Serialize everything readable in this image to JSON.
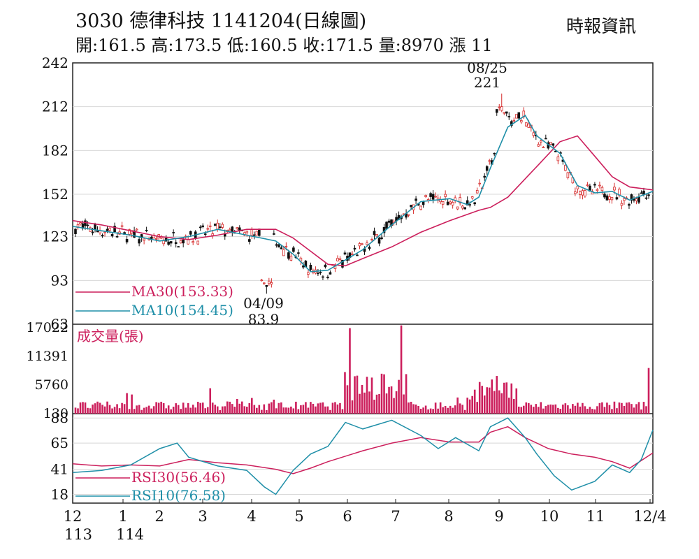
{
  "header": {
    "title": "3030  德律科技 1141204(日線圖)",
    "ohlc": "開:161.5 高:173.5 低:160.5 收:171.5 量:8970 漲 11",
    "source": "時報資訊"
  },
  "chart_data": [
    {
      "type": "candlestick",
      "x_ticks": [
        "12",
        "1",
        "2",
        "3",
        "4",
        "5",
        "6",
        "7",
        "8",
        "9",
        "10",
        "11",
        "12/4"
      ],
      "x_year_labels": [
        "113",
        "114"
      ],
      "y_ticks": [
        63,
        93,
        123,
        152,
        182,
        212,
        242
      ],
      "ylim": [
        63,
        242
      ],
      "open": 161.5,
      "high": 173.5,
      "low": 160.5,
      "close": 171.5,
      "volume": 8970,
      "change": 11,
      "annotations": [
        {
          "label": "08/25",
          "value": "221",
          "date": "08/25",
          "price": 221,
          "type": "high"
        },
        {
          "label": "04/09",
          "value": "83.9",
          "date": "04/09",
          "price": 83.9,
          "type": "low"
        }
      ],
      "series": [
        {
          "name": "MA30(153.33)",
          "color": "#cc1f5c",
          "points": [
            [
              0,
              134
            ],
            [
              0.05,
              131
            ],
            [
              0.1,
              127
            ],
            [
              0.15,
              123
            ],
            [
              0.2,
              121
            ],
            [
              0.25,
              124
            ],
            [
              0.3,
              128
            ],
            [
              0.35,
              128
            ],
            [
              0.38,
              122
            ],
            [
              0.41,
              113
            ],
            [
              0.44,
              104
            ],
            [
              0.47,
              103
            ],
            [
              0.5,
              108
            ],
            [
              0.55,
              116
            ],
            [
              0.6,
              126
            ],
            [
              0.65,
              134
            ],
            [
              0.7,
              141
            ],
            [
              0.72,
              143
            ],
            [
              0.75,
              150
            ],
            [
              0.8,
              171
            ],
            [
              0.84,
              188
            ],
            [
              0.87,
              192
            ],
            [
              0.9,
              178
            ],
            [
              0.93,
              164
            ],
            [
              0.96,
              157
            ],
            [
              1,
              155
            ]
          ]
        },
        {
          "name": "MA10(154.45)",
          "color": "#1f8fa8",
          "points": [
            [
              0,
              130
            ],
            [
              0.05,
              127
            ],
            [
              0.1,
              124
            ],
            [
              0.15,
              120
            ],
            [
              0.2,
              123
            ],
            [
              0.25,
              128
            ],
            [
              0.3,
              124
            ],
            [
              0.35,
              120
            ],
            [
              0.38,
              111
            ],
            [
              0.41,
              99
            ],
            [
              0.44,
              100
            ],
            [
              0.47,
              107
            ],
            [
              0.5,
              114
            ],
            [
              0.55,
              131
            ],
            [
              0.6,
              147
            ],
            [
              0.65,
              149
            ],
            [
              0.68,
              145
            ],
            [
              0.7,
              150
            ],
            [
              0.72,
              170
            ],
            [
              0.75,
              198
            ],
            [
              0.78,
              206
            ],
            [
              0.8,
              192
            ],
            [
              0.84,
              180
            ],
            [
              0.87,
              158
            ],
            [
              0.9,
              153
            ],
            [
              0.93,
              154
            ],
            [
              0.96,
              148
            ],
            [
              1,
              154
            ]
          ]
        }
      ],
      "legend": [
        "MA30(153.33)",
        "MA10(154.45)"
      ]
    },
    {
      "type": "bar",
      "title": "成交量(張)",
      "y_ticks": [
        130,
        5760,
        11391,
        17022
      ],
      "ylim": [
        0,
        17022
      ],
      "latest_volume": 8970
    },
    {
      "type": "line",
      "y_ticks": [
        18,
        41,
        65,
        88
      ],
      "ylim": [
        10,
        92
      ],
      "series": [
        {
          "name": "RSI30(56.46)",
          "color": "#cc1f5c",
          "points": [
            [
              0,
              46
            ],
            [
              0.05,
              44
            ],
            [
              0.1,
              45
            ],
            [
              0.15,
              44
            ],
            [
              0.2,
              50
            ],
            [
              0.25,
              47
            ],
            [
              0.3,
              45
            ],
            [
              0.35,
              41
            ],
            [
              0.38,
              37
            ],
            [
              0.41,
              42
            ],
            [
              0.44,
              48
            ],
            [
              0.5,
              58
            ],
            [
              0.55,
              65
            ],
            [
              0.6,
              70
            ],
            [
              0.65,
              66
            ],
            [
              0.7,
              66
            ],
            [
              0.72,
              75
            ],
            [
              0.75,
              80
            ],
            [
              0.78,
              70
            ],
            [
              0.82,
              60
            ],
            [
              0.86,
              55
            ],
            [
              0.9,
              52
            ],
            [
              0.93,
              48
            ],
            [
              0.96,
              42
            ],
            [
              1,
              56
            ]
          ]
        },
        {
          "name": "RSI10(76.58)",
          "color": "#1f8fa8",
          "points": [
            [
              0,
              38
            ],
            [
              0.05,
              40
            ],
            [
              0.1,
              45
            ],
            [
              0.15,
              60
            ],
            [
              0.18,
              65
            ],
            [
              0.2,
              52
            ],
            [
              0.25,
              44
            ],
            [
              0.3,
              40
            ],
            [
              0.33,
              25
            ],
            [
              0.35,
              18
            ],
            [
              0.38,
              40
            ],
            [
              0.41,
              55
            ],
            [
              0.44,
              62
            ],
            [
              0.47,
              84
            ],
            [
              0.5,
              78
            ],
            [
              0.55,
              86
            ],
            [
              0.6,
              72
            ],
            [
              0.63,
              60
            ],
            [
              0.66,
              70
            ],
            [
              0.7,
              58
            ],
            [
              0.72,
              80
            ],
            [
              0.75,
              88
            ],
            [
              0.78,
              70
            ],
            [
              0.8,
              55
            ],
            [
              0.83,
              35
            ],
            [
              0.86,
              22
            ],
            [
              0.9,
              30
            ],
            [
              0.93,
              45
            ],
            [
              0.96,
              38
            ],
            [
              0.98,
              50
            ],
            [
              1,
              77
            ]
          ]
        }
      ],
      "legend": [
        "RSI30(56.46)",
        "RSI10(76.58)"
      ]
    }
  ]
}
